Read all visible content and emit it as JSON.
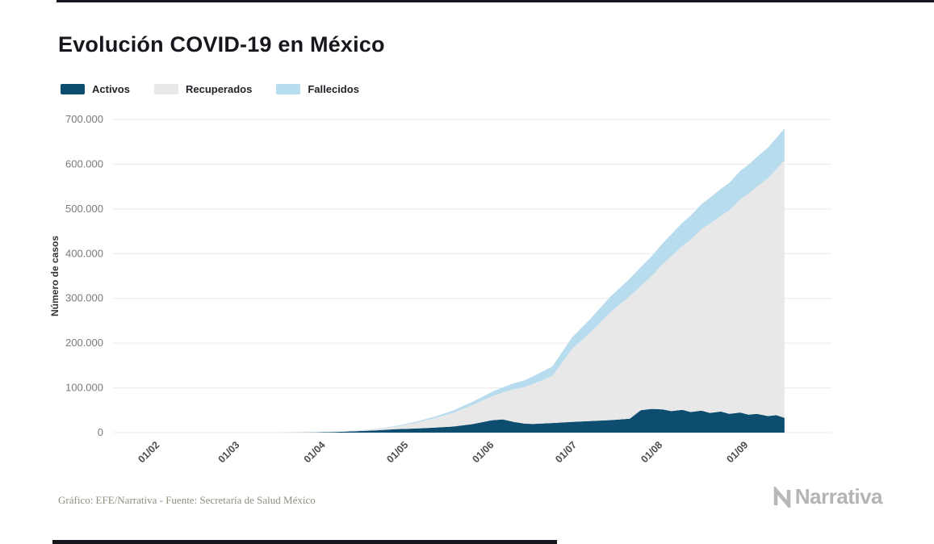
{
  "page": {
    "title": "Evolución COVID-19 en México",
    "footer_note": "Gráfico: EFE/Narrativa - Fuente: Secretaría de Salud México",
    "brand": "Narrativa"
  },
  "chart_data": {
    "type": "area",
    "stacked": true,
    "title": "Evolución COVID-19 en México",
    "xlabel": "",
    "ylabel": "Número de casos",
    "ylim": [
      0,
      700000
    ],
    "grid": "horizontal",
    "legend_position": "top-left",
    "background": "#ffffff",
    "gridline_color": "#e9e9e9",
    "y_ticks": [
      {
        "value": 0,
        "label": "0"
      },
      {
        "value": 100000,
        "label": "100.000"
      },
      {
        "value": 200000,
        "label": "200.000"
      },
      {
        "value": 300000,
        "label": "300.000"
      },
      {
        "value": 400000,
        "label": "400.000"
      },
      {
        "value": 500000,
        "label": "500.000"
      },
      {
        "value": 600000,
        "label": "600.000"
      },
      {
        "value": 700000,
        "label": "700.000"
      }
    ],
    "x_ticks": [
      "01/02",
      "01/03",
      "01/04",
      "01/05",
      "01/06",
      "01/07",
      "01/08",
      "01/09"
    ],
    "series": [
      {
        "key": "activos",
        "name": "Activos",
        "color": "#0d4d6f"
      },
      {
        "key": "recuperados",
        "name": "Recuperados",
        "color": "#e8e8e8"
      },
      {
        "key": "fallecidos",
        "name": "Fallecidos",
        "color": "#b7dcee"
      }
    ],
    "points": [
      {
        "date": "01/02",
        "activos": 0,
        "recuperados": 0,
        "fallecidos": 0
      },
      {
        "date": "01/03",
        "activos": 4,
        "recuperados": 1,
        "fallecidos": 0
      },
      {
        "date": "08/03",
        "activos": 6,
        "recuperados": 1,
        "fallecidos": 0
      },
      {
        "date": "15/03",
        "activos": 45,
        "recuperados": 7,
        "fallecidos": 1
      },
      {
        "date": "22/03",
        "activos": 220,
        "recuperados": 91,
        "fallecidos": 5
      },
      {
        "date": "29/03",
        "activos": 700,
        "recuperados": 273,
        "fallecidos": 20
      },
      {
        "date": "05/04",
        "activos": 1700,
        "recuperados": 318,
        "fallecidos": 125
      },
      {
        "date": "12/04",
        "activos": 3000,
        "recuperados": 1365,
        "fallecidos": 296
      },
      {
        "date": "19/04",
        "activos": 5000,
        "recuperados": 2575,
        "fallecidos": 686
      },
      {
        "date": "26/04",
        "activos": 7500,
        "recuperados": 5826,
        "fallecidos": 1351
      },
      {
        "date": "03/05",
        "activos": 9000,
        "recuperados": 12200,
        "fallecidos": 2271
      },
      {
        "date": "10/05",
        "activos": 11000,
        "recuperados": 20557,
        "fallecidos": 3465
      },
      {
        "date": "17/05",
        "activos": 13500,
        "recuperados": 30542,
        "fallecidos": 5177
      },
      {
        "date": "24/05",
        "activos": 19000,
        "recuperados": 42226,
        "fallecidos": 7394
      },
      {
        "date": "31/05",
        "activos": 27500,
        "recuperados": 53234,
        "fallecidos": 9930
      },
      {
        "date": "04/06",
        "activos": 29500,
        "recuperados": 60009,
        "fallecidos": 11729
      },
      {
        "date": "08/06",
        "activos": 24000,
        "recuperados": 73000,
        "fallecidos": 13000
      },
      {
        "date": "12/06",
        "activos": 20000,
        "recuperados": 82000,
        "fallecidos": 15000
      },
      {
        "date": "15/06",
        "activos": 19500,
        "recuperados": 89500,
        "fallecidos": 17000
      },
      {
        "date": "22/06",
        "activos": 21500,
        "recuperados": 105000,
        "fallecidos": 21500
      },
      {
        "date": "29/06",
        "activos": 24000,
        "recuperados": 162000,
        "fallecidos": 26000
      },
      {
        "date": "06/07",
        "activos": 26000,
        "recuperados": 199500,
        "fallecidos": 30500
      },
      {
        "date": "13/07",
        "activos": 28000,
        "recuperados": 241300,
        "fallecidos": 34700
      },
      {
        "date": "20/07",
        "activos": 31000,
        "recuperados": 274000,
        "fallecidos": 39000
      },
      {
        "date": "24/07",
        "activos": 50000,
        "recuperados": 278100,
        "fallecidos": 41900
      },
      {
        "date": "28/07",
        "activos": 53000,
        "recuperados": 297800,
        "fallecidos": 44200
      },
      {
        "date": "01/08",
        "activos": 52000,
        "recuperados": 325300,
        "fallecidos": 46700
      },
      {
        "date": "04/08",
        "activos": 48000,
        "recuperados": 346100,
        "fallecidos": 48900
      },
      {
        "date": "08/08",
        "activos": 51000,
        "recuperados": 366000,
        "fallecidos": 52000
      },
      {
        "date": "11/08",
        "activos": 46000,
        "recuperados": 385100,
        "fallecidos": 53900
      },
      {
        "date": "15/08",
        "activos": 49000,
        "recuperados": 406000,
        "fallecidos": 56000
      },
      {
        "date": "18/08",
        "activos": 44000,
        "recuperados": 423200,
        "fallecidos": 57800
      },
      {
        "date": "22/08",
        "activos": 47000,
        "recuperados": 437800,
        "fallecidos": 60200
      },
      {
        "date": "25/08",
        "activos": 42000,
        "recuperados": 454500,
        "fallecidos": 61500
      },
      {
        "date": "29/08",
        "activos": 45000,
        "recuperados": 476600,
        "fallecidos": 63400
      },
      {
        "date": "01/09",
        "activos": 40000,
        "recuperados": 494500,
        "fallecidos": 64500
      },
      {
        "date": "04/09",
        "activos": 42000,
        "recuperados": 507700,
        "fallecidos": 66300
      },
      {
        "date": "08/09",
        "activos": 37000,
        "recuperados": 532000,
        "fallecidos": 68000
      },
      {
        "date": "11/09",
        "activos": 39000,
        "recuperados": 549500,
        "fallecidos": 69500
      },
      {
        "date": "14/09",
        "activos": 33000,
        "recuperados": 576200,
        "fallecidos": 70800
      }
    ]
  }
}
